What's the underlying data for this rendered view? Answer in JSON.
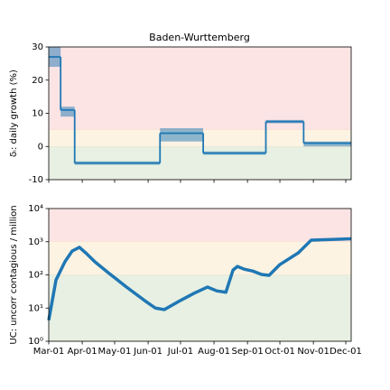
{
  "chart_data": [
    {
      "type": "step",
      "title": "Baden-Wurttemberg",
      "ylabel": "δᵢ: daily growth (%)",
      "xlim": [
        0,
        280
      ],
      "ylim": [
        -10,
        30
      ],
      "yticks": [
        -10,
        0,
        10,
        20,
        30
      ],
      "zones": [
        {
          "from": 5,
          "to": 30,
          "color": "#fde4e4"
        },
        {
          "from": 0,
          "to": 5,
          "color": "#fdf3e3"
        },
        {
          "from": -10,
          "to": 0,
          "color": "#e7f0e2"
        }
      ],
      "series": [
        {
          "color": "#1f77b4",
          "x": [
            0,
            11,
            24,
            103,
            143,
            201,
            236
          ],
          "values": [
            27,
            11,
            -5,
            4,
            -2,
            7.5,
            1
          ],
          "lower": [
            24,
            9,
            -5.5,
            1.5,
            -2.5,
            7,
            0
          ],
          "upper": [
            30,
            12,
            -4.5,
            5.5,
            -1.5,
            8,
            1.5
          ]
        }
      ]
    },
    {
      "type": "line",
      "ylabel": "UC: uncorr contagious / million",
      "log": true,
      "xlim": [
        0,
        280
      ],
      "xticks": [
        {
          "value": 0,
          "label": "Mar-01"
        },
        {
          "value": 31,
          "label": "Apr-01"
        },
        {
          "value": 61,
          "label": "May-01"
        },
        {
          "value": 92,
          "label": "Jun-01"
        },
        {
          "value": 122,
          "label": "Jul-01"
        },
        {
          "value": 153,
          "label": "Aug-01"
        },
        {
          "value": 184,
          "label": "Sep-01"
        },
        {
          "value": 214,
          "label": "Oct-01"
        },
        {
          "value": 245,
          "label": "Nov-01"
        },
        {
          "value": 275,
          "label": "Dec-01"
        }
      ],
      "ylim": [
        1,
        10000
      ],
      "yticks": [
        {
          "value": 1,
          "label": "10⁰"
        },
        {
          "value": 10,
          "label": "10¹"
        },
        {
          "value": 100,
          "label": "10²"
        },
        {
          "value": 1000,
          "label": "10³"
        },
        {
          "value": 10000,
          "label": "10⁴"
        }
      ],
      "zones": [
        {
          "from": 1000,
          "to": 10000,
          "color": "#fde4e4"
        },
        {
          "from": 100,
          "to": 1000,
          "color": "#fdf3e3"
        },
        {
          "from": 1,
          "to": 100,
          "color": "#e7f0e2"
        }
      ],
      "series": [
        {
          "color": "#1f77b4",
          "x": [
            0,
            6.7,
            15,
            21.7,
            28.4,
            34.3,
            42.6,
            55,
            72,
            88.6,
            98.7,
            107,
            122,
            134.6,
            147,
            155.5,
            164,
            170.6,
            174.7,
            180.6,
            189,
            197,
            204,
            214,
            231,
            243,
            256,
            280
          ],
          "values": [
            4.3,
            70,
            250,
            525,
            680,
            460,
            250,
            117,
            43,
            17,
            10,
            9,
            17,
            28,
            43,
            33,
            30,
            140,
            180,
            150,
            130,
            103,
            97,
            205,
            460,
            1120,
            1150,
            1230
          ]
        }
      ]
    }
  ]
}
